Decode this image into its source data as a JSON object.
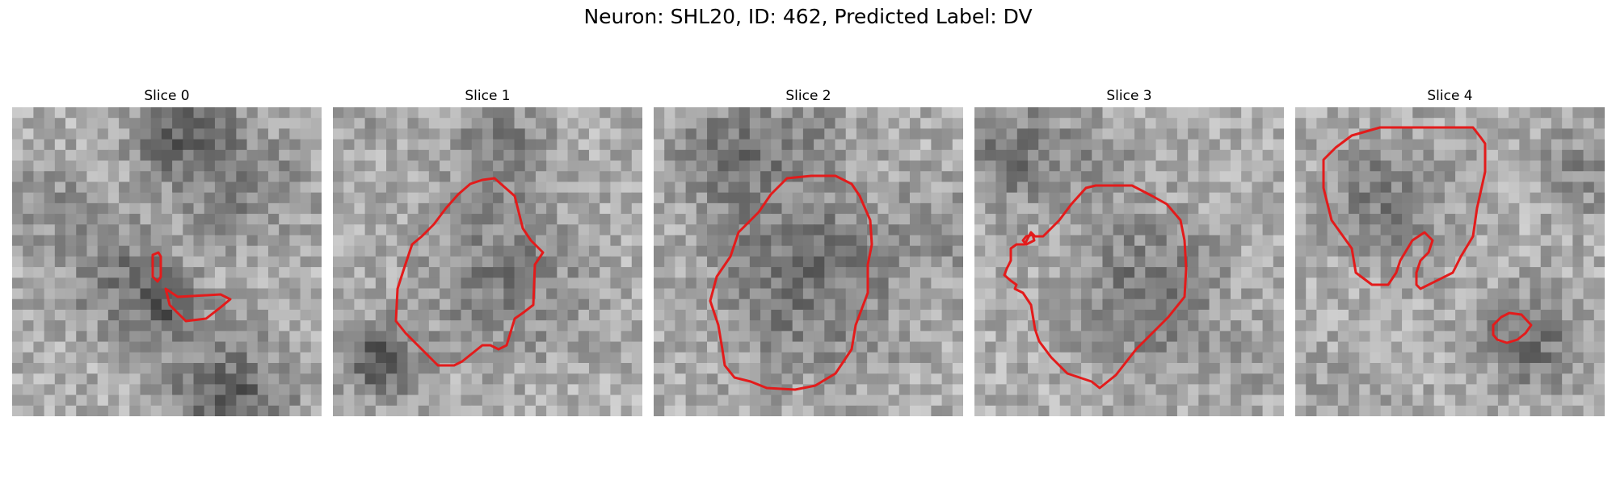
{
  "figure": {
    "title": "Neuron: SHL20, ID: 462, Predicted Label: DV"
  },
  "contour_color": "#e31b1b",
  "panels": [
    {
      "title": "Slice 0"
    },
    {
      "title": "Slice 1"
    },
    {
      "title": "Slice 2"
    },
    {
      "title": "Slice 3"
    },
    {
      "title": "Slice 4"
    }
  ]
}
